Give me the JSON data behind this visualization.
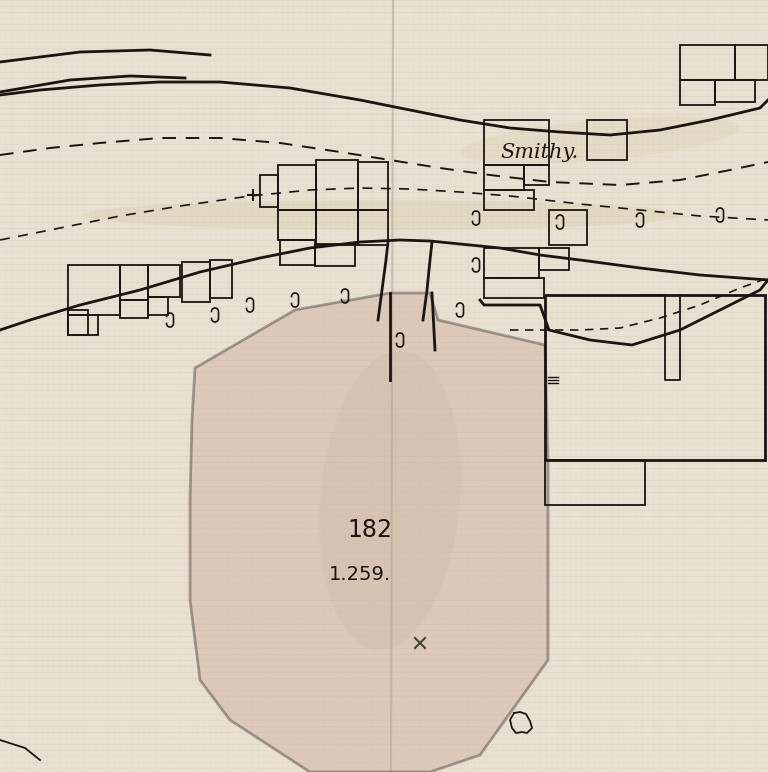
{
  "bg_color": "#e8e0d0",
  "line_color": "#1a1510",
  "pink_fill": "#c8a090",
  "pink_fill_alpha": 0.35,
  "smithy_label": "Smithy.",
  "parcel_number": "182",
  "parcel_area": "1.259.",
  "fig_width": 7.68,
  "fig_height": 7.72,
  "dpi": 100,
  "crease_color": "#b0a898",
  "stain_color": "#d4c8a0"
}
